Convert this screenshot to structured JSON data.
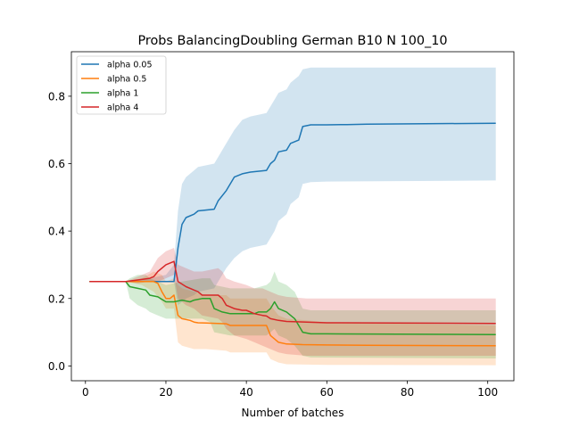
{
  "chart_data": {
    "type": "line",
    "title": "Probs BalancingDoubling German B10 N 100_10",
    "xlabel": "Number of batches",
    "ylabel": "",
    "xlim": [
      -3.5,
      106.5
    ],
    "ylim": [
      -0.044,
      0.932
    ],
    "xticks": [
      0,
      20,
      40,
      60,
      80,
      100
    ],
    "xtick_labels": [
      "0",
      "20",
      "40",
      "60",
      "80",
      "100"
    ],
    "yticks": [
      0.0,
      0.2,
      0.4,
      0.6,
      0.8
    ],
    "ytick_labels": [
      "0.0",
      "0.2",
      "0.4",
      "0.6",
      "0.8"
    ],
    "grid": false,
    "legend_position": "upper-left",
    "series": [
      {
        "name": "alpha 0.05",
        "color": "#1f77b4",
        "points": [
          [
            1,
            0.25
          ],
          [
            10,
            0.25
          ],
          [
            14,
            0.25
          ],
          [
            17,
            0.25
          ],
          [
            20,
            0.25
          ],
          [
            22,
            0.25
          ],
          [
            23,
            0.35
          ],
          [
            24,
            0.42
          ],
          [
            25,
            0.44
          ],
          [
            27,
            0.45
          ],
          [
            28,
            0.46
          ],
          [
            32,
            0.465
          ],
          [
            33,
            0.49
          ],
          [
            35,
            0.52
          ],
          [
            37,
            0.56
          ],
          [
            39,
            0.57
          ],
          [
            41,
            0.575
          ],
          [
            45,
            0.58
          ],
          [
            46,
            0.6
          ],
          [
            47,
            0.61
          ],
          [
            48,
            0.635
          ],
          [
            50,
            0.64
          ],
          [
            51,
            0.66
          ],
          [
            53,
            0.67
          ],
          [
            54,
            0.71
          ],
          [
            56,
            0.715
          ],
          [
            60,
            0.715
          ],
          [
            65,
            0.716
          ],
          [
            70,
            0.717
          ],
          [
            102,
            0.72
          ]
        ],
        "band": [
          [
            1,
            0.25,
            0.25
          ],
          [
            10,
            0.25,
            0.25
          ],
          [
            14,
            0.25,
            0.255
          ],
          [
            20,
            0.25,
            0.27
          ],
          [
            22,
            0.25,
            0.3
          ],
          [
            23,
            0.18,
            0.46
          ],
          [
            24,
            0.19,
            0.54
          ],
          [
            25,
            0.2,
            0.56
          ],
          [
            27,
            0.21,
            0.58
          ],
          [
            28,
            0.22,
            0.59
          ],
          [
            32,
            0.23,
            0.6
          ],
          [
            33,
            0.25,
            0.62
          ],
          [
            35,
            0.29,
            0.66
          ],
          [
            37,
            0.32,
            0.7
          ],
          [
            39,
            0.34,
            0.73
          ],
          [
            41,
            0.35,
            0.74
          ],
          [
            45,
            0.36,
            0.75
          ],
          [
            46,
            0.38,
            0.77
          ],
          [
            47,
            0.4,
            0.79
          ],
          [
            48,
            0.43,
            0.81
          ],
          [
            50,
            0.45,
            0.82
          ],
          [
            51,
            0.48,
            0.84
          ],
          [
            53,
            0.5,
            0.86
          ],
          [
            54,
            0.54,
            0.88
          ],
          [
            56,
            0.545,
            0.885
          ],
          [
            60,
            0.547,
            0.885
          ],
          [
            102,
            0.55,
            0.885
          ]
        ]
      },
      {
        "name": "alpha 0.5",
        "color": "#ff7f0e",
        "points": [
          [
            1,
            0.25
          ],
          [
            10,
            0.25
          ],
          [
            14,
            0.25
          ],
          [
            17,
            0.25
          ],
          [
            18,
            0.245
          ],
          [
            19,
            0.22
          ],
          [
            20,
            0.2
          ],
          [
            21,
            0.2
          ],
          [
            22,
            0.21
          ],
          [
            23,
            0.15
          ],
          [
            24,
            0.14
          ],
          [
            26,
            0.135
          ],
          [
            27,
            0.13
          ],
          [
            28,
            0.128
          ],
          [
            30,
            0.127
          ],
          [
            35,
            0.125
          ],
          [
            36,
            0.12
          ],
          [
            45,
            0.12
          ],
          [
            46,
            0.09
          ],
          [
            48,
            0.07
          ],
          [
            50,
            0.065
          ],
          [
            54,
            0.063
          ],
          [
            60,
            0.062
          ],
          [
            70,
            0.061
          ],
          [
            102,
            0.06
          ]
        ],
        "band": [
          [
            1,
            0.25,
            0.25
          ],
          [
            10,
            0.25,
            0.25
          ],
          [
            14,
            0.24,
            0.26
          ],
          [
            17,
            0.22,
            0.28
          ],
          [
            19,
            0.19,
            0.27
          ],
          [
            20,
            0.17,
            0.25
          ],
          [
            22,
            0.17,
            0.26
          ],
          [
            23,
            0.07,
            0.24
          ],
          [
            24,
            0.06,
            0.23
          ],
          [
            27,
            0.05,
            0.22
          ],
          [
            30,
            0.05,
            0.21
          ],
          [
            35,
            0.045,
            0.21
          ],
          [
            36,
            0.04,
            0.2
          ],
          [
            45,
            0.04,
            0.2
          ],
          [
            46,
            0.02,
            0.18
          ],
          [
            48,
            0.01,
            0.15
          ],
          [
            50,
            0.005,
            0.14
          ],
          [
            60,
            0.003,
            0.13
          ],
          [
            102,
            0.002,
            0.12
          ]
        ]
      },
      {
        "name": "alpha 1",
        "color": "#2ca02c",
        "points": [
          [
            1,
            0.25
          ],
          [
            10,
            0.25
          ],
          [
            11,
            0.235
          ],
          [
            13,
            0.23
          ],
          [
            15,
            0.225
          ],
          [
            16,
            0.21
          ],
          [
            18,
            0.205
          ],
          [
            20,
            0.19
          ],
          [
            22,
            0.19
          ],
          [
            24,
            0.195
          ],
          [
            26,
            0.19
          ],
          [
            27,
            0.195
          ],
          [
            29,
            0.2
          ],
          [
            31,
            0.2
          ],
          [
            32,
            0.17
          ],
          [
            34,
            0.16
          ],
          [
            36,
            0.155
          ],
          [
            42,
            0.155
          ],
          [
            43,
            0.16
          ],
          [
            45,
            0.16
          ],
          [
            46,
            0.17
          ],
          [
            47,
            0.19
          ],
          [
            48,
            0.17
          ],
          [
            50,
            0.16
          ],
          [
            52,
            0.14
          ],
          [
            54,
            0.1
          ],
          [
            56,
            0.095
          ],
          [
            60,
            0.095
          ],
          [
            102,
            0.093
          ]
        ],
        "band": [
          [
            1,
            0.25,
            0.25
          ],
          [
            10,
            0.25,
            0.25
          ],
          [
            11,
            0.2,
            0.26
          ],
          [
            13,
            0.18,
            0.27
          ],
          [
            15,
            0.17,
            0.27
          ],
          [
            16,
            0.16,
            0.26
          ],
          [
            18,
            0.15,
            0.25
          ],
          [
            20,
            0.14,
            0.24
          ],
          [
            24,
            0.14,
            0.25
          ],
          [
            29,
            0.14,
            0.26
          ],
          [
            31,
            0.13,
            0.26
          ],
          [
            32,
            0.1,
            0.24
          ],
          [
            36,
            0.09,
            0.23
          ],
          [
            42,
            0.09,
            0.23
          ],
          [
            45,
            0.09,
            0.24
          ],
          [
            46,
            0.1,
            0.25
          ],
          [
            47,
            0.11,
            0.28
          ],
          [
            48,
            0.09,
            0.25
          ],
          [
            50,
            0.08,
            0.24
          ],
          [
            52,
            0.06,
            0.22
          ],
          [
            54,
            0.03,
            0.17
          ],
          [
            56,
            0.025,
            0.165
          ],
          [
            102,
            0.022,
            0.165
          ]
        ]
      },
      {
        "name": "alpha 4",
        "color": "#d62728",
        "points": [
          [
            1,
            0.25
          ],
          [
            10,
            0.25
          ],
          [
            13,
            0.255
          ],
          [
            16,
            0.26
          ],
          [
            17,
            0.265
          ],
          [
            18,
            0.28
          ],
          [
            20,
            0.3
          ],
          [
            22,
            0.31
          ],
          [
            23,
            0.25
          ],
          [
            25,
            0.235
          ],
          [
            27,
            0.225
          ],
          [
            28,
            0.22
          ],
          [
            29,
            0.21
          ],
          [
            33,
            0.21
          ],
          [
            34,
            0.2
          ],
          [
            35,
            0.18
          ],
          [
            37,
            0.17
          ],
          [
            39,
            0.165
          ],
          [
            40,
            0.165
          ],
          [
            42,
            0.155
          ],
          [
            44,
            0.15
          ],
          [
            45,
            0.148
          ],
          [
            46,
            0.14
          ],
          [
            48,
            0.135
          ],
          [
            50,
            0.132
          ],
          [
            55,
            0.13
          ],
          [
            60,
            0.128
          ],
          [
            102,
            0.126
          ]
        ],
        "band": [
          [
            1,
            0.25,
            0.25
          ],
          [
            10,
            0.25,
            0.25
          ],
          [
            13,
            0.245,
            0.265
          ],
          [
            16,
            0.25,
            0.28
          ],
          [
            18,
            0.25,
            0.32
          ],
          [
            20,
            0.26,
            0.34
          ],
          [
            22,
            0.27,
            0.35
          ],
          [
            23,
            0.2,
            0.3
          ],
          [
            25,
            0.18,
            0.29
          ],
          [
            27,
            0.17,
            0.28
          ],
          [
            29,
            0.15,
            0.28
          ],
          [
            33,
            0.14,
            0.29
          ],
          [
            34,
            0.13,
            0.28
          ],
          [
            35,
            0.11,
            0.26
          ],
          [
            37,
            0.09,
            0.25
          ],
          [
            40,
            0.08,
            0.24
          ],
          [
            42,
            0.07,
            0.23
          ],
          [
            44,
            0.06,
            0.23
          ],
          [
            46,
            0.05,
            0.22
          ],
          [
            48,
            0.04,
            0.21
          ],
          [
            50,
            0.035,
            0.205
          ],
          [
            55,
            0.03,
            0.2
          ],
          [
            102,
            0.03,
            0.2
          ]
        ]
      }
    ]
  }
}
